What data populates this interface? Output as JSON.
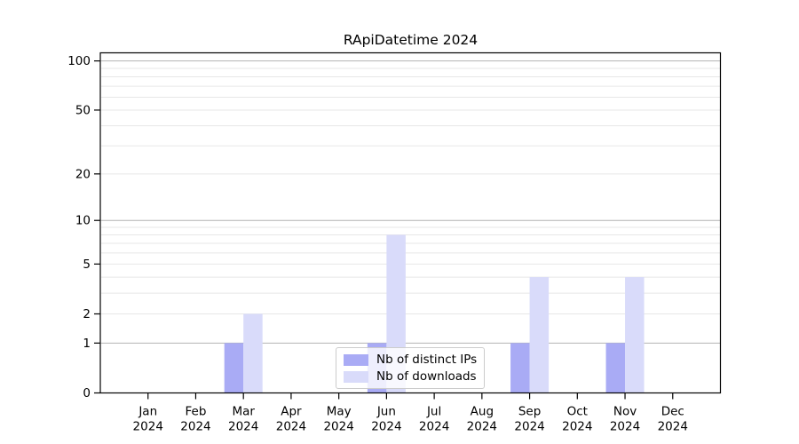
{
  "title": "RApiDatetime 2024",
  "legend": {
    "entries": [
      {
        "label": "Nb of distinct IPs",
        "color": "#a9abf5"
      },
      {
        "label": "Nb of downloads",
        "color": "#d9dbfa"
      }
    ]
  },
  "chart_data": {
    "type": "bar",
    "title": "RApiDatetime 2024",
    "categories": [
      "Jan",
      "Feb",
      "Mar",
      "Apr",
      "May",
      "Jun",
      "Jul",
      "Aug",
      "Sep",
      "Oct",
      "Nov",
      "Dec"
    ],
    "year": "2024",
    "series": [
      {
        "name": "Nb of distinct IPs",
        "color": "#a9abf5",
        "values": [
          0,
          0,
          1,
          0,
          0,
          1,
          0,
          0,
          1,
          0,
          1,
          0
        ]
      },
      {
        "name": "Nb of downloads",
        "color": "#d9dbfa",
        "values": [
          0,
          0,
          2,
          0,
          0,
          8,
          0,
          0,
          4,
          0,
          4,
          0
        ]
      }
    ],
    "xlabel": "",
    "ylabel": "",
    "y_scale": "log1p",
    "ylim": [
      0,
      112
    ],
    "y_tick_labels": [
      "0",
      "1",
      "2",
      "5",
      "10",
      "20",
      "50",
      "100"
    ],
    "y_ticks": [
      0,
      1,
      2,
      5,
      10,
      20,
      50,
      100
    ],
    "grid": {
      "major": [
        1,
        10,
        100
      ],
      "minor": [
        2,
        3,
        4,
        5,
        6,
        7,
        8,
        9,
        20,
        30,
        40,
        50,
        60,
        70,
        80,
        90
      ],
      "major_color": "#b3b3b3",
      "minor_color": "#e7e7e7"
    },
    "legend_position": "inside lower center",
    "spine_color": "#000000"
  }
}
